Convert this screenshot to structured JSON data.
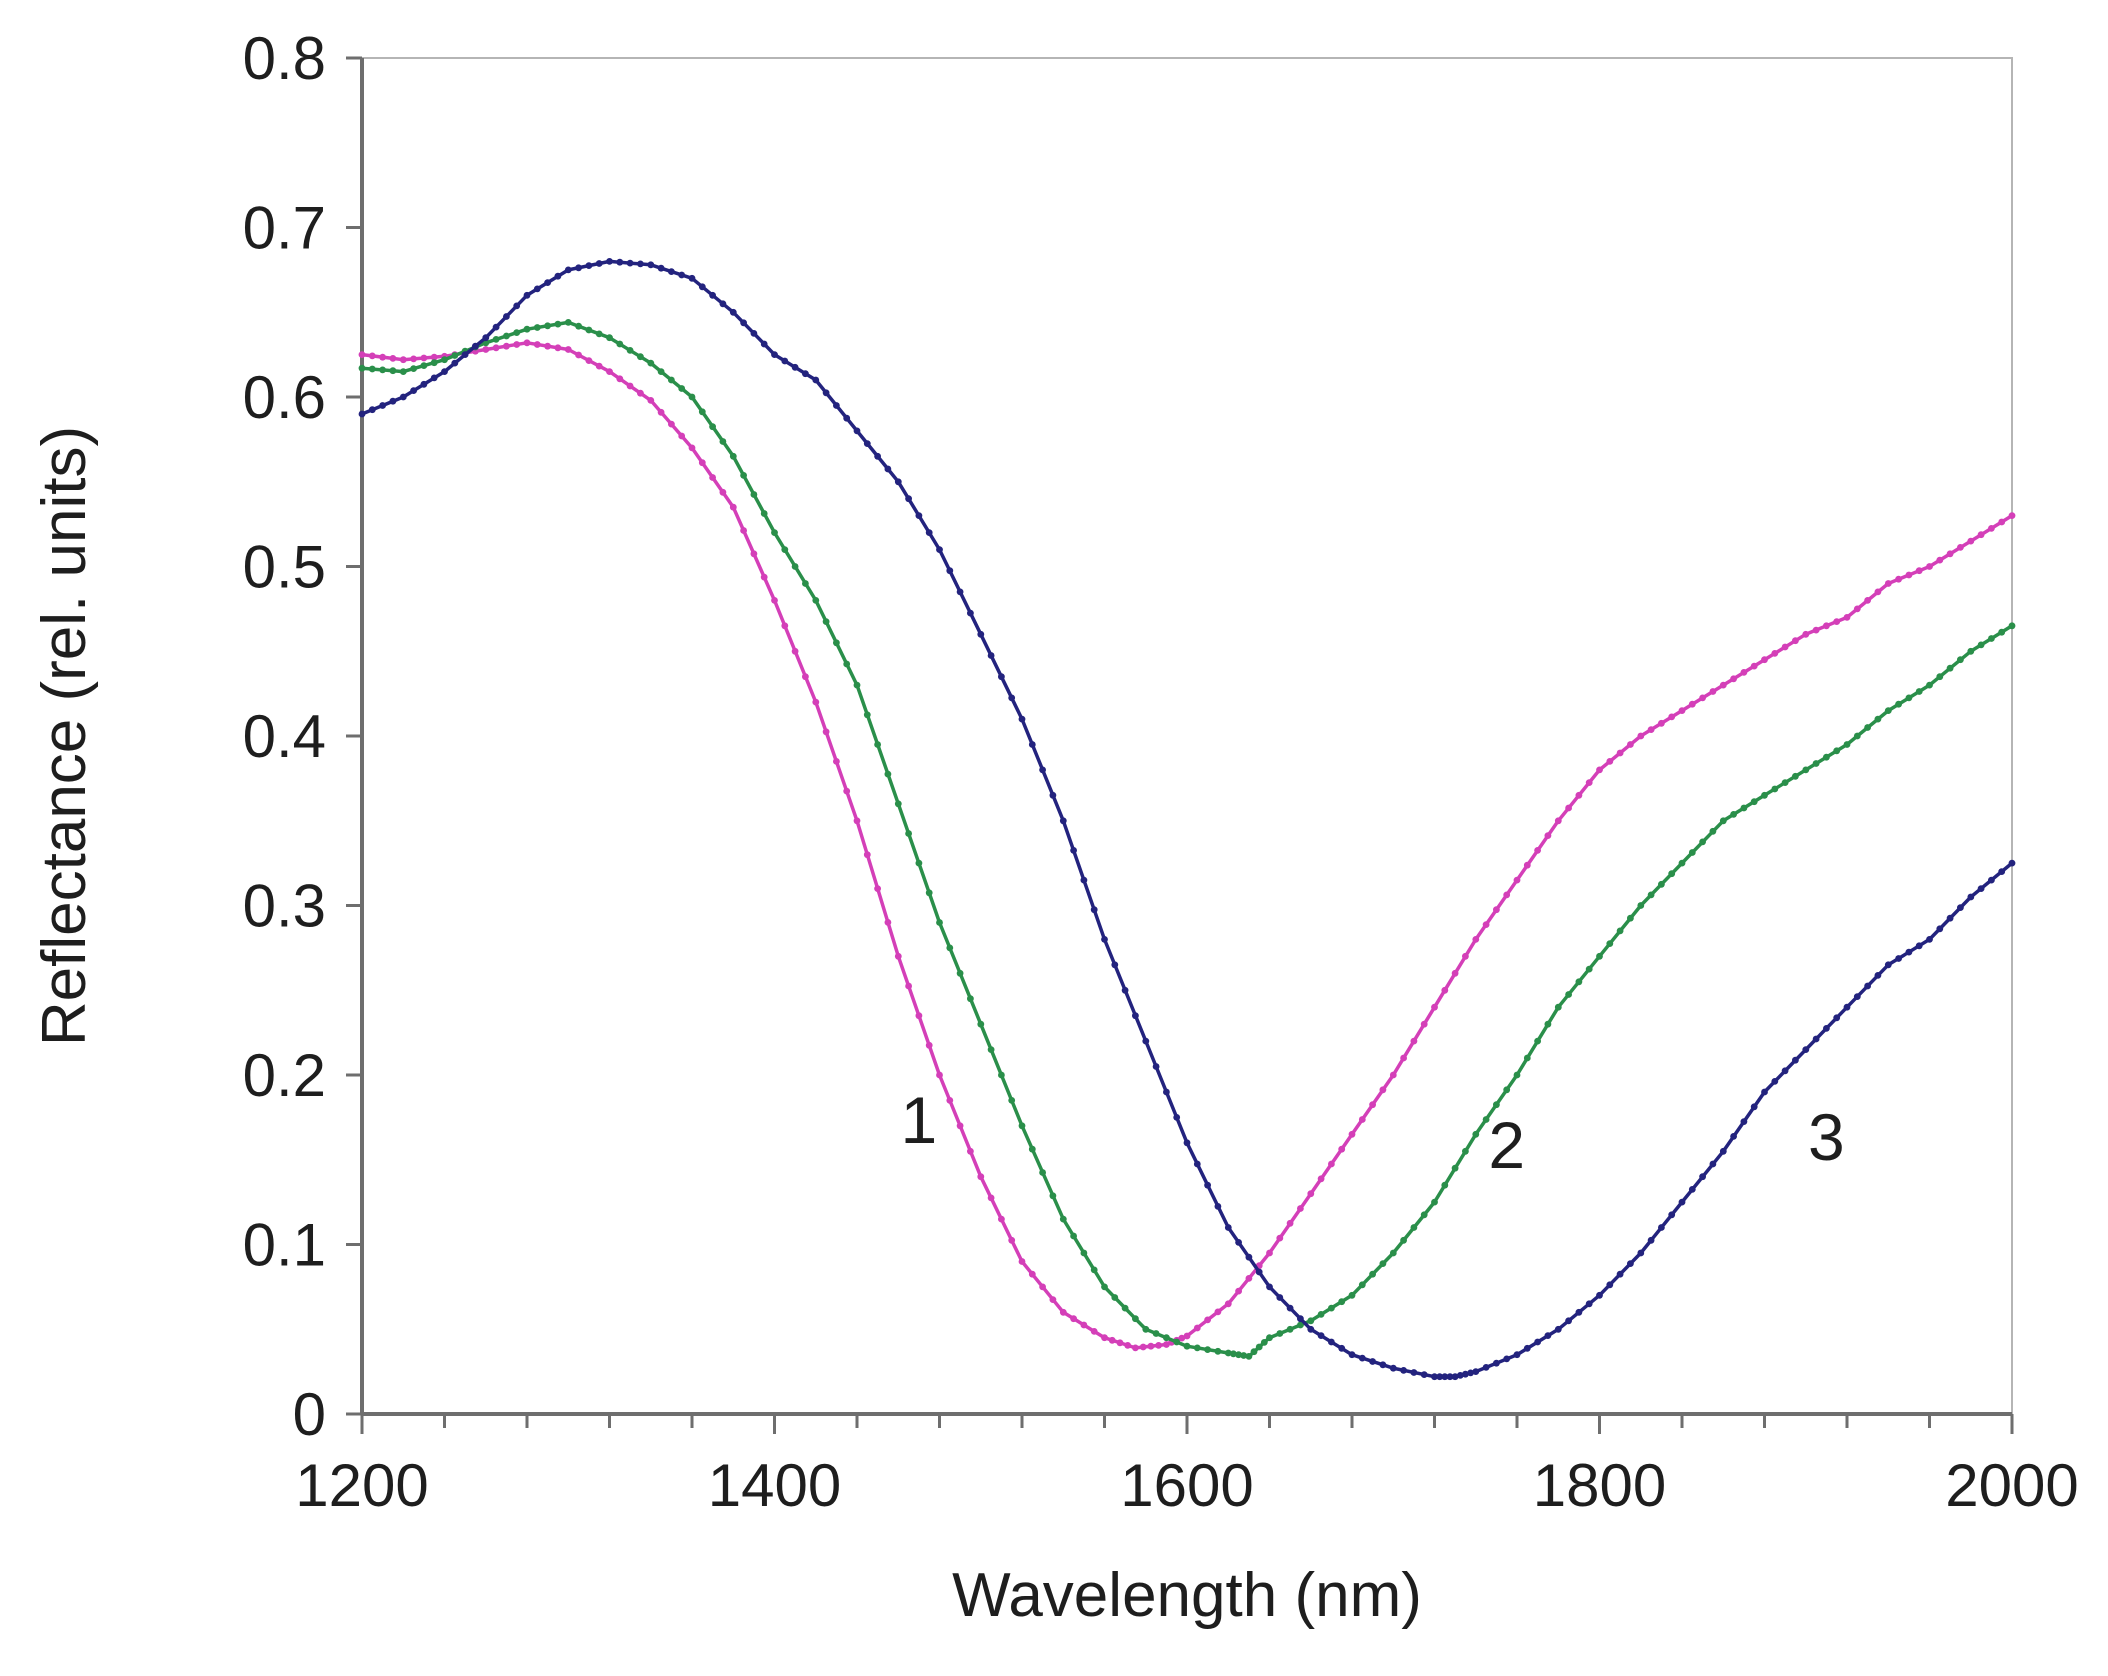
{
  "chart_data": {
    "type": "line",
    "title": "",
    "xlabel": "Wavelength (nm)",
    "ylabel": "Reflectance (rel. units)",
    "xlim": [
      1200,
      2000
    ],
    "ylim": [
      0,
      0.8
    ],
    "x_ticks": [
      1200,
      1400,
      1600,
      1800,
      2000
    ],
    "x_tick_labels": [
      "1200",
      "1400",
      "1600",
      "1800",
      "2000"
    ],
    "x_minor_step": 40,
    "y_ticks": [
      0,
      0.1,
      0.2,
      0.3,
      0.4,
      0.5,
      0.6,
      0.7,
      0.8
    ],
    "y_tick_labels": [
      "0",
      "0.1",
      "0.2",
      "0.3",
      "0.4",
      "0.5",
      "0.6",
      "0.7",
      "0.8"
    ],
    "grid": false,
    "legend": "none",
    "series": [
      {
        "name": "1",
        "color": "#d43fb8",
        "label_at": [
          1470,
          0.16
        ],
        "x": [
          1200,
          1220,
          1240,
          1260,
          1280,
          1300,
          1320,
          1340,
          1360,
          1380,
          1400,
          1420,
          1440,
          1460,
          1480,
          1500,
          1520,
          1540,
          1560,
          1575,
          1590,
          1600,
          1620,
          1640,
          1660,
          1680,
          1700,
          1720,
          1740,
          1760,
          1780,
          1800,
          1820,
          1840,
          1860,
          1880,
          1900,
          1920,
          1940,
          1960,
          1980,
          2000
        ],
        "y": [
          0.625,
          0.622,
          0.624,
          0.628,
          0.632,
          0.628,
          0.615,
          0.598,
          0.57,
          0.535,
          0.48,
          0.42,
          0.35,
          0.27,
          0.2,
          0.14,
          0.09,
          0.06,
          0.045,
          0.039,
          0.041,
          0.046,
          0.065,
          0.095,
          0.13,
          0.165,
          0.2,
          0.24,
          0.28,
          0.315,
          0.35,
          0.38,
          0.4,
          0.415,
          0.43,
          0.445,
          0.46,
          0.47,
          0.49,
          0.5,
          0.515,
          0.53
        ]
      },
      {
        "name": "2",
        "color": "#2a8f4a",
        "label_at": [
          1755,
          0.145
        ],
        "x": [
          1200,
          1220,
          1240,
          1260,
          1280,
          1300,
          1320,
          1340,
          1360,
          1380,
          1400,
          1420,
          1440,
          1460,
          1480,
          1500,
          1520,
          1540,
          1560,
          1580,
          1600,
          1620,
          1630,
          1640,
          1660,
          1680,
          1700,
          1720,
          1740,
          1760,
          1780,
          1800,
          1820,
          1840,
          1860,
          1880,
          1900,
          1920,
          1940,
          1960,
          1980,
          2000
        ],
        "y": [
          0.617,
          0.615,
          0.622,
          0.632,
          0.64,
          0.644,
          0.635,
          0.62,
          0.6,
          0.565,
          0.52,
          0.48,
          0.43,
          0.36,
          0.29,
          0.23,
          0.17,
          0.115,
          0.075,
          0.05,
          0.04,
          0.036,
          0.034,
          0.045,
          0.055,
          0.07,
          0.095,
          0.125,
          0.165,
          0.2,
          0.24,
          0.27,
          0.3,
          0.325,
          0.35,
          0.365,
          0.38,
          0.395,
          0.415,
          0.43,
          0.45,
          0.465
        ]
      },
      {
        "name": "3",
        "color": "#23237e",
        "label_at": [
          1910,
          0.15
        ],
        "x": [
          1200,
          1220,
          1240,
          1260,
          1280,
          1300,
          1320,
          1340,
          1360,
          1380,
          1400,
          1420,
          1440,
          1460,
          1480,
          1500,
          1520,
          1540,
          1560,
          1580,
          1600,
          1620,
          1640,
          1660,
          1680,
          1700,
          1720,
          1730,
          1740,
          1760,
          1780,
          1800,
          1820,
          1840,
          1860,
          1880,
          1900,
          1920,
          1940,
          1960,
          1980,
          2000
        ],
        "y": [
          0.59,
          0.6,
          0.615,
          0.635,
          0.66,
          0.675,
          0.68,
          0.678,
          0.67,
          0.65,
          0.625,
          0.61,
          0.58,
          0.55,
          0.51,
          0.46,
          0.41,
          0.35,
          0.28,
          0.22,
          0.16,
          0.11,
          0.075,
          0.05,
          0.035,
          0.027,
          0.022,
          0.022,
          0.025,
          0.035,
          0.05,
          0.07,
          0.095,
          0.125,
          0.155,
          0.19,
          0.215,
          0.24,
          0.265,
          0.28,
          0.305,
          0.325
        ]
      }
    ]
  }
}
